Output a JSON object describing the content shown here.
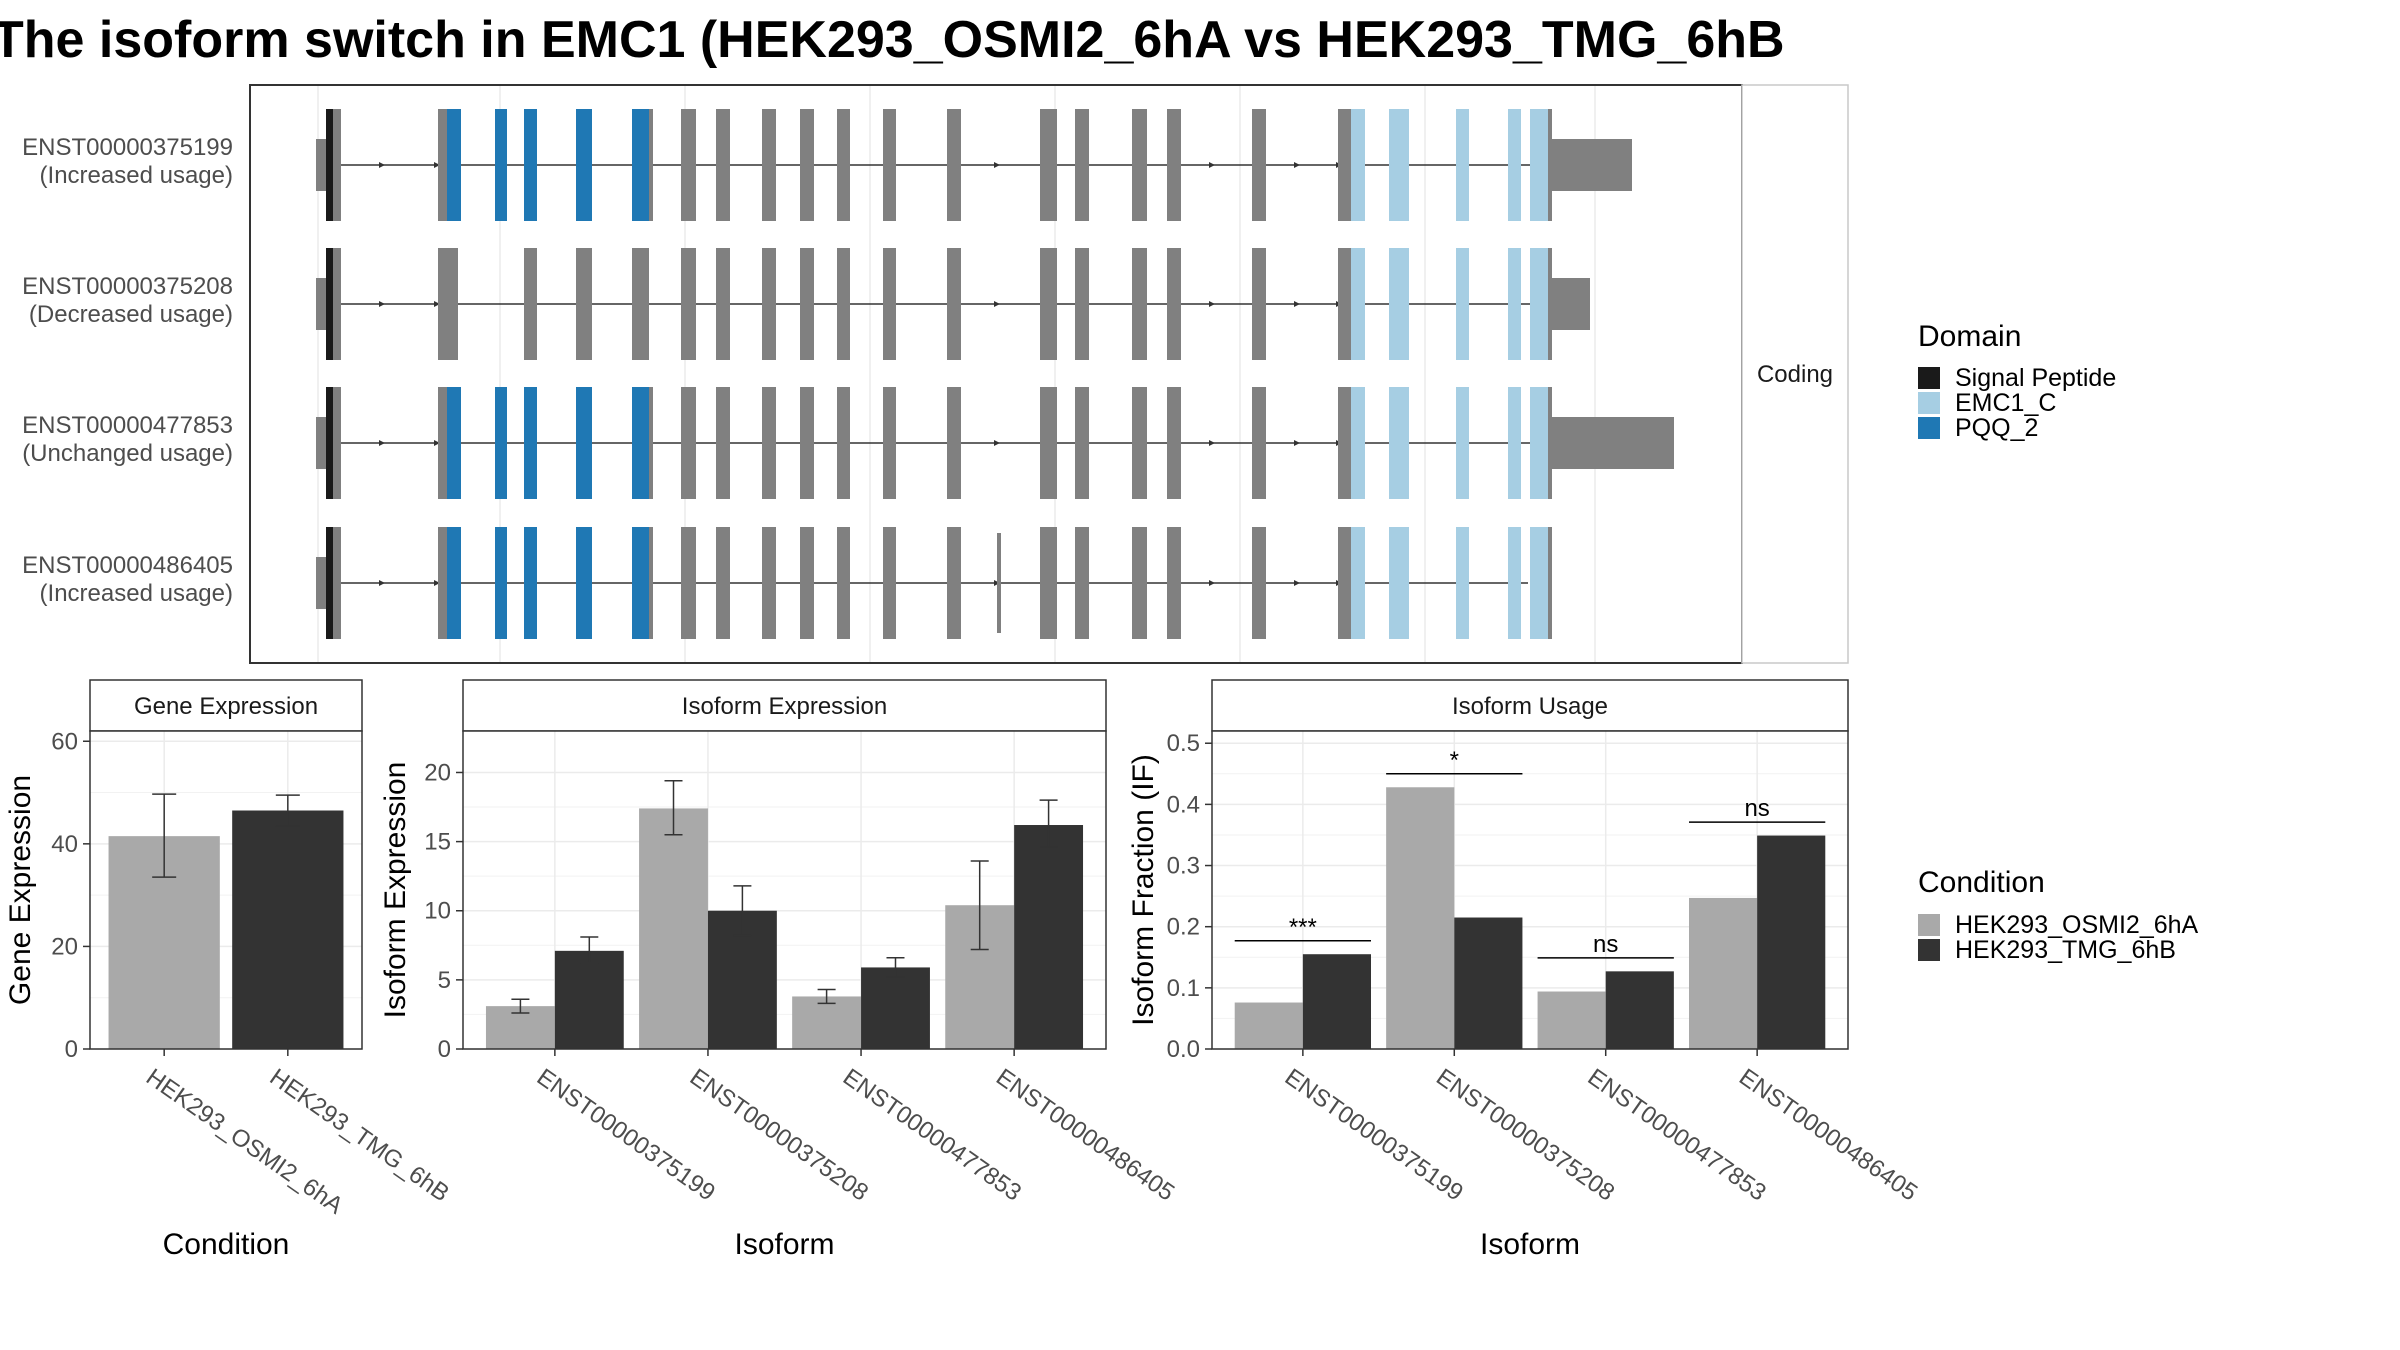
{
  "title": "The isoform switch in EMC1 (HEK293_OSMI2_6hA vs HEK293_TMG_6hB",
  "colors": {
    "signal_peptide": "#1a1a1a",
    "emc1_c": "#a6cee3",
    "pqq_2": "#1f78b4",
    "exon": "#808080",
    "cond_a": "#a9a9a9",
    "cond_b": "#333333",
    "grid": "#ebebeb",
    "strip_bg": "#ffffff"
  },
  "structure": {
    "facet_label": "Coding",
    "isoforms": [
      {
        "id": "ENST00000375199",
        "usage": "(Increased usage)"
      },
      {
        "id": "ENST00000375208",
        "usage": "(Decreased usage)"
      },
      {
        "id": "ENST00000477853",
        "usage": "(Unchanged usage)"
      },
      {
        "id": "ENST00000486405",
        "usage": "(Increased usage)"
      }
    ]
  },
  "legend_domain": {
    "title": "Domain",
    "items": [
      {
        "label": "Signal Peptide",
        "color": "#1a1a1a"
      },
      {
        "label": "EMC1_C",
        "color": "#a6cee3"
      },
      {
        "label": "PQQ_2",
        "color": "#1f78b4"
      }
    ]
  },
  "legend_condition": {
    "title": "Condition",
    "items": [
      {
        "label": "HEK293_OSMI2_6hA",
        "color": "#a9a9a9"
      },
      {
        "label": "HEK293_TMG_6hB",
        "color": "#333333"
      }
    ]
  },
  "chart_data": [
    {
      "type": "bar",
      "strip": "Gene Expression",
      "xlabel": "Condition",
      "ylabel": "Gene Expression",
      "ylim": [
        0,
        62
      ],
      "yticks": [
        0,
        20,
        40,
        60
      ],
      "categories": [
        "HEK293_OSMI2_6hA",
        "HEK293_TMG_6hB"
      ],
      "values": [
        41.5,
        46.5
      ],
      "errors_low": [
        33.5,
        43.5
      ],
      "errors_high": [
        49.7,
        49.5
      ]
    },
    {
      "type": "bar",
      "strip": "Isoform Expression",
      "xlabel": "Isoform",
      "ylabel": "Isoform Expression",
      "ylim": [
        0,
        23
      ],
      "yticks": [
        0,
        5,
        10,
        15,
        20
      ],
      "categories": [
        "ENST00000375199",
        "ENST00000375208",
        "ENST00000477853",
        "ENST00000486405"
      ],
      "series": [
        {
          "name": "HEK293_OSMI2_6hA",
          "values": [
            3.1,
            17.4,
            3.8,
            10.4
          ],
          "low": [
            2.6,
            15.5,
            3.3,
            7.2
          ],
          "high": [
            3.6,
            19.4,
            4.3,
            13.6
          ]
        },
        {
          "name": "HEK293_TMG_6hB",
          "values": [
            7.1,
            10.0,
            5.9,
            16.2
          ],
          "low": [
            6.2,
            8.2,
            5.2,
            14.6
          ],
          "high": [
            8.1,
            11.8,
            6.6,
            18.0
          ]
        }
      ]
    },
    {
      "type": "bar",
      "strip": "Isoform Usage",
      "xlabel": "Isoform",
      "ylabel": "Isoform Fraction (IF)",
      "ylim": [
        0,
        0.52
      ],
      "yticks": [
        0.0,
        0.1,
        0.2,
        0.3,
        0.4,
        0.5
      ],
      "ytick_labels": [
        "0.0",
        "0.1",
        "0.2",
        "0.3",
        "0.4",
        "0.5"
      ],
      "categories": [
        "ENST00000375199",
        "ENST00000375208",
        "ENST00000477853",
        "ENST00000486405"
      ],
      "series": [
        {
          "name": "HEK293_OSMI2_6hA",
          "values": [
            0.076,
            0.428,
            0.094,
            0.247
          ]
        },
        {
          "name": "HEK293_TMG_6hB",
          "values": [
            0.155,
            0.215,
            0.127,
            0.349
          ]
        }
      ],
      "significance": [
        "***",
        "*",
        "ns",
        "ns"
      ],
      "sig_y": [
        0.177,
        0.45,
        0.149,
        0.371
      ]
    }
  ]
}
